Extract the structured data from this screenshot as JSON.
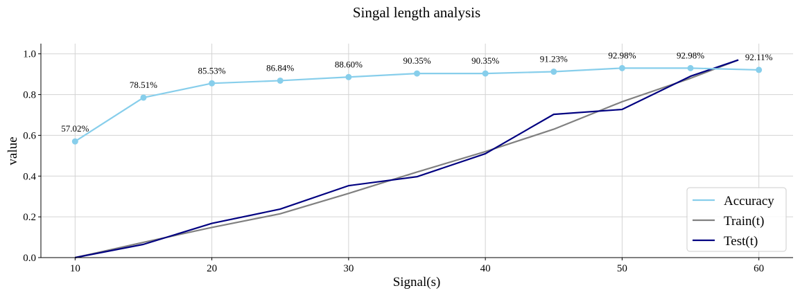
{
  "chart_data": {
    "type": "line",
    "title": "Singal length analysis",
    "xlabel": "Signal(s)",
    "ylabel": "value",
    "x": [
      10,
      15,
      20,
      25,
      30,
      35,
      40,
      45,
      50,
      55,
      60
    ],
    "xlim": [
      7.5,
      62.5
    ],
    "ylim": [
      0,
      1.05
    ],
    "xticks": [
      10,
      20,
      30,
      40,
      50,
      60
    ],
    "yticks": [
      0.0,
      0.2,
      0.4,
      0.6,
      0.8,
      1.0
    ],
    "ytick_labels": [
      "0.0",
      "0.2",
      "0.4",
      "0.6",
      "0.8",
      "1.0"
    ],
    "grid": true,
    "legend_position": "bottom-right",
    "series": [
      {
        "name": "Accuracy",
        "color": "#87ceeb",
        "markers": true,
        "x": [
          10,
          15,
          20,
          25,
          30,
          35,
          40,
          45,
          50,
          55,
          60
        ],
        "values": [
          0.5702,
          0.7851,
          0.8553,
          0.8684,
          0.886,
          0.9035,
          0.9035,
          0.9123,
          0.9298,
          0.9298,
          0.9211
        ],
        "labels": [
          "57.02%",
          "78.51%",
          "85.53%",
          "86.84%",
          "88.60%",
          "90.35%",
          "90.35%",
          "91.23%",
          "92.98%",
          "92.98%",
          "92.11%"
        ]
      },
      {
        "name": "Train(t)",
        "color": "#808080",
        "markers": false,
        "x": [
          10,
          15,
          20,
          25,
          30,
          35,
          40,
          45,
          50,
          55,
          58.5
        ],
        "values": [
          0.0,
          0.075,
          0.148,
          0.215,
          0.315,
          0.42,
          0.52,
          0.63,
          0.765,
          0.88,
          0.97
        ]
      },
      {
        "name": "Test(t)",
        "color": "#000080",
        "markers": false,
        "x": [
          10,
          15,
          20,
          25,
          30,
          35,
          40,
          45,
          50,
          55,
          58.5
        ],
        "values": [
          0.0,
          0.065,
          0.168,
          0.238,
          0.353,
          0.397,
          0.51,
          0.703,
          0.727,
          0.89,
          0.97
        ]
      }
    ]
  }
}
